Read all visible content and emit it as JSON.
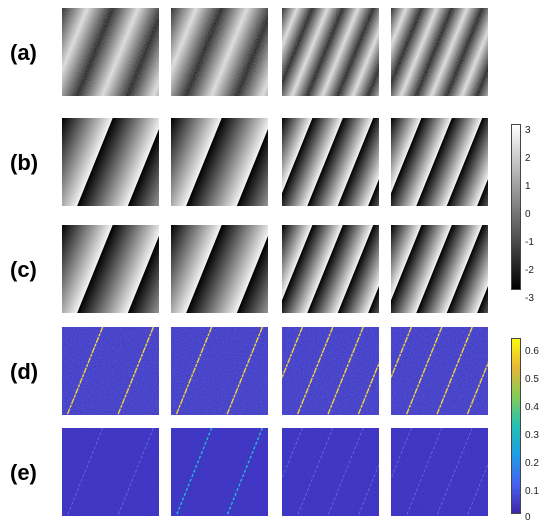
{
  "rows": [
    {
      "label": "(a)",
      "type": "intensity"
    },
    {
      "label": "(b)",
      "type": "wrapped-phase"
    },
    {
      "label": "(c)",
      "type": "wrapped-phase"
    },
    {
      "label": "(d)",
      "type": "error-map-large"
    },
    {
      "label": "(e)",
      "type": "error-map-small"
    }
  ],
  "columns": 4,
  "fringe_counts": [
    3,
    3,
    5,
    5
  ],
  "colorbar_gray": {
    "ticks": [
      "3",
      "2",
      "1",
      "0",
      "-1",
      "-2",
      "-3"
    ],
    "range": [
      -3,
      3
    ],
    "colors": [
      "#000000",
      "#ffffff"
    ]
  },
  "colorbar_parula": {
    "ticks": [
      "0.6",
      "0.5",
      "0.4",
      "0.3",
      "0.2",
      "0.1",
      "0"
    ],
    "range": [
      0,
      0.65
    ],
    "colors": [
      "#3e26a8",
      "#4662f0",
      "#1d9de5",
      "#22c0b5",
      "#81cc57",
      "#e7b736",
      "#f9fb0e"
    ]
  },
  "colors": {
    "background": "#ffffff",
    "error_base": "#3a2fc0",
    "error_line": "#f2d43a"
  }
}
